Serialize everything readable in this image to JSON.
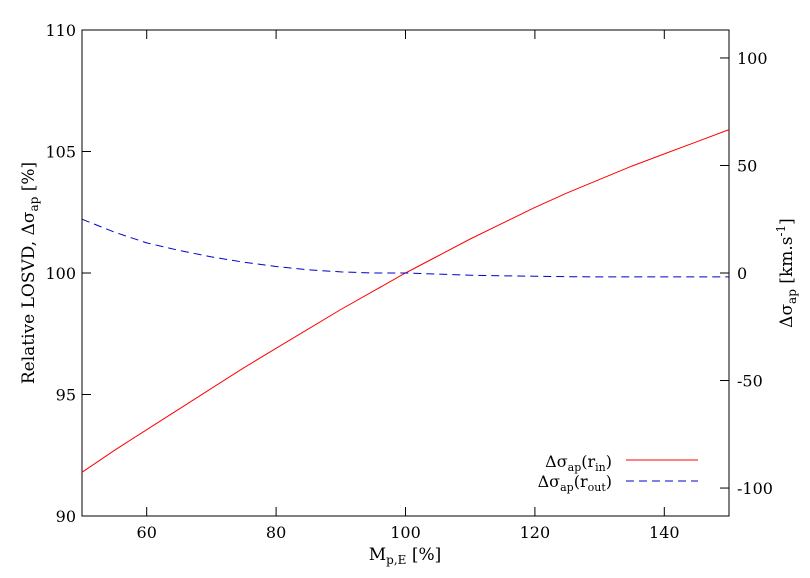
{
  "chart_data": {
    "type": "line",
    "x_axis": {
      "label_main": "M",
      "label_sub": "p,E",
      "label_suffix": " [%]",
      "range": [
        50,
        150
      ],
      "ticks": [
        60,
        80,
        100,
        120,
        140
      ]
    },
    "y_left": {
      "label_prefix": "Relative LOSVD, Δσ",
      "label_sub": "ap",
      "label_suffix": " [%]",
      "range": [
        90,
        110
      ],
      "ticks": [
        90,
        95,
        100,
        105,
        110
      ]
    },
    "y_right": {
      "label_main": "Δσ",
      "label_sub": "ap",
      "label_units": " [km.s",
      "label_sup": "-1",
      "label_close": "]",
      "range": [
        -113,
        113
      ],
      "ticks": [
        -100,
        -50,
        0,
        50,
        100
      ]
    },
    "series": [
      {
        "name_main": "Δσ",
        "name_sub1": "ap",
        "name_open": "(r",
        "name_sub2": "in",
        "name_close": ")",
        "axis": "left",
        "color": "#ff0000",
        "style": "solid",
        "x": [
          50,
          55,
          60,
          65,
          70,
          75,
          80,
          85,
          90,
          95,
          100,
          105,
          110,
          115,
          120,
          125,
          130,
          135,
          140,
          145,
          150
        ],
        "y": [
          91.8,
          92.7,
          93.55,
          94.4,
          95.25,
          96.1,
          96.9,
          97.7,
          98.5,
          99.25,
          100.0,
          100.7,
          101.4,
          102.05,
          102.7,
          103.3,
          103.85,
          104.4,
          104.9,
          105.4,
          105.9
        ]
      },
      {
        "name_main": "Δσ",
        "name_sub1": "ap",
        "name_open": "(r",
        "name_sub2": "out",
        "name_close": ")",
        "axis": "right",
        "color": "#0000cc",
        "style": "dashed",
        "x": [
          50,
          55,
          60,
          65,
          70,
          75,
          80,
          85,
          90,
          95,
          100,
          105,
          110,
          115,
          120,
          125,
          130,
          135,
          140,
          145,
          150
        ],
        "y": [
          25,
          19,
          14,
          10.5,
          7.5,
          5,
          3,
          1.5,
          0.5,
          0,
          0,
          -0.5,
          -1,
          -1.3,
          -1.5,
          -1.7,
          -1.8,
          -1.8,
          -1.8,
          -1.8,
          -1.8
        ]
      }
    ],
    "legend_position": "bottom-right",
    "grid": false
  }
}
